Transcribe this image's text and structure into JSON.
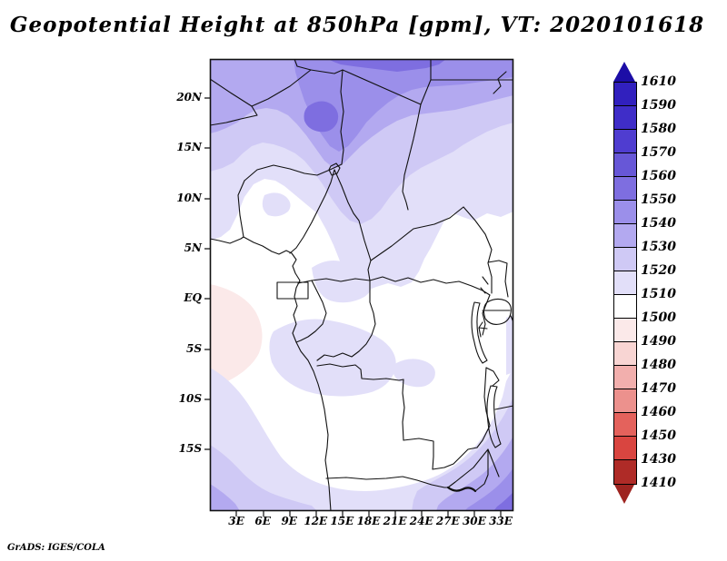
{
  "title": "Geopotential Height at 850hPa [gpm], VT: 2020101618",
  "attribution": "GrADS: IGES/COLA",
  "map": {
    "y_axis": {
      "labels": [
        "20N",
        "15N",
        "10N",
        "5N",
        "EQ",
        "5S",
        "10S",
        "15S"
      ]
    },
    "x_axis": {
      "labels": [
        "3E",
        "6E",
        "9E",
        "12E",
        "15E",
        "18E",
        "21E",
        "24E",
        "27E",
        "30E",
        "33E"
      ]
    }
  },
  "colorbar": {
    "tick_labels": [
      "1610",
      "1590",
      "1580",
      "1570",
      "1560",
      "1550",
      "1540",
      "1530",
      "1520",
      "1510",
      "1500",
      "1490",
      "1480",
      "1470",
      "1460",
      "1450",
      "1430",
      "1410"
    ],
    "segment_colors": [
      "#3120BE",
      "#3F2DC8",
      "#4F3DD0",
      "#6757D7",
      "#7E6EE0",
      "#9B8FEA",
      "#B3A9F0",
      "#CFC9F5",
      "#E2DFF9",
      "#FFFFFF",
      "#FBE9E9",
      "#F8D5D3",
      "#F2AFAD",
      "#EC918D",
      "#E4625C",
      "#D94540",
      "#AF2B27"
    ],
    "arrow_top_color": "#1C0DA6",
    "arrow_bottom_color": "#9E2420"
  },
  "palette": {
    "white": "#FFFFFF",
    "pink1": "#FBE9E9",
    "lav1": "#E2DFF9",
    "lav2": "#CFC9F5",
    "lav3": "#B3A9F0",
    "lav4": "#9B8FEA",
    "lav5": "#7E6EE0",
    "border": "#111111"
  }
}
